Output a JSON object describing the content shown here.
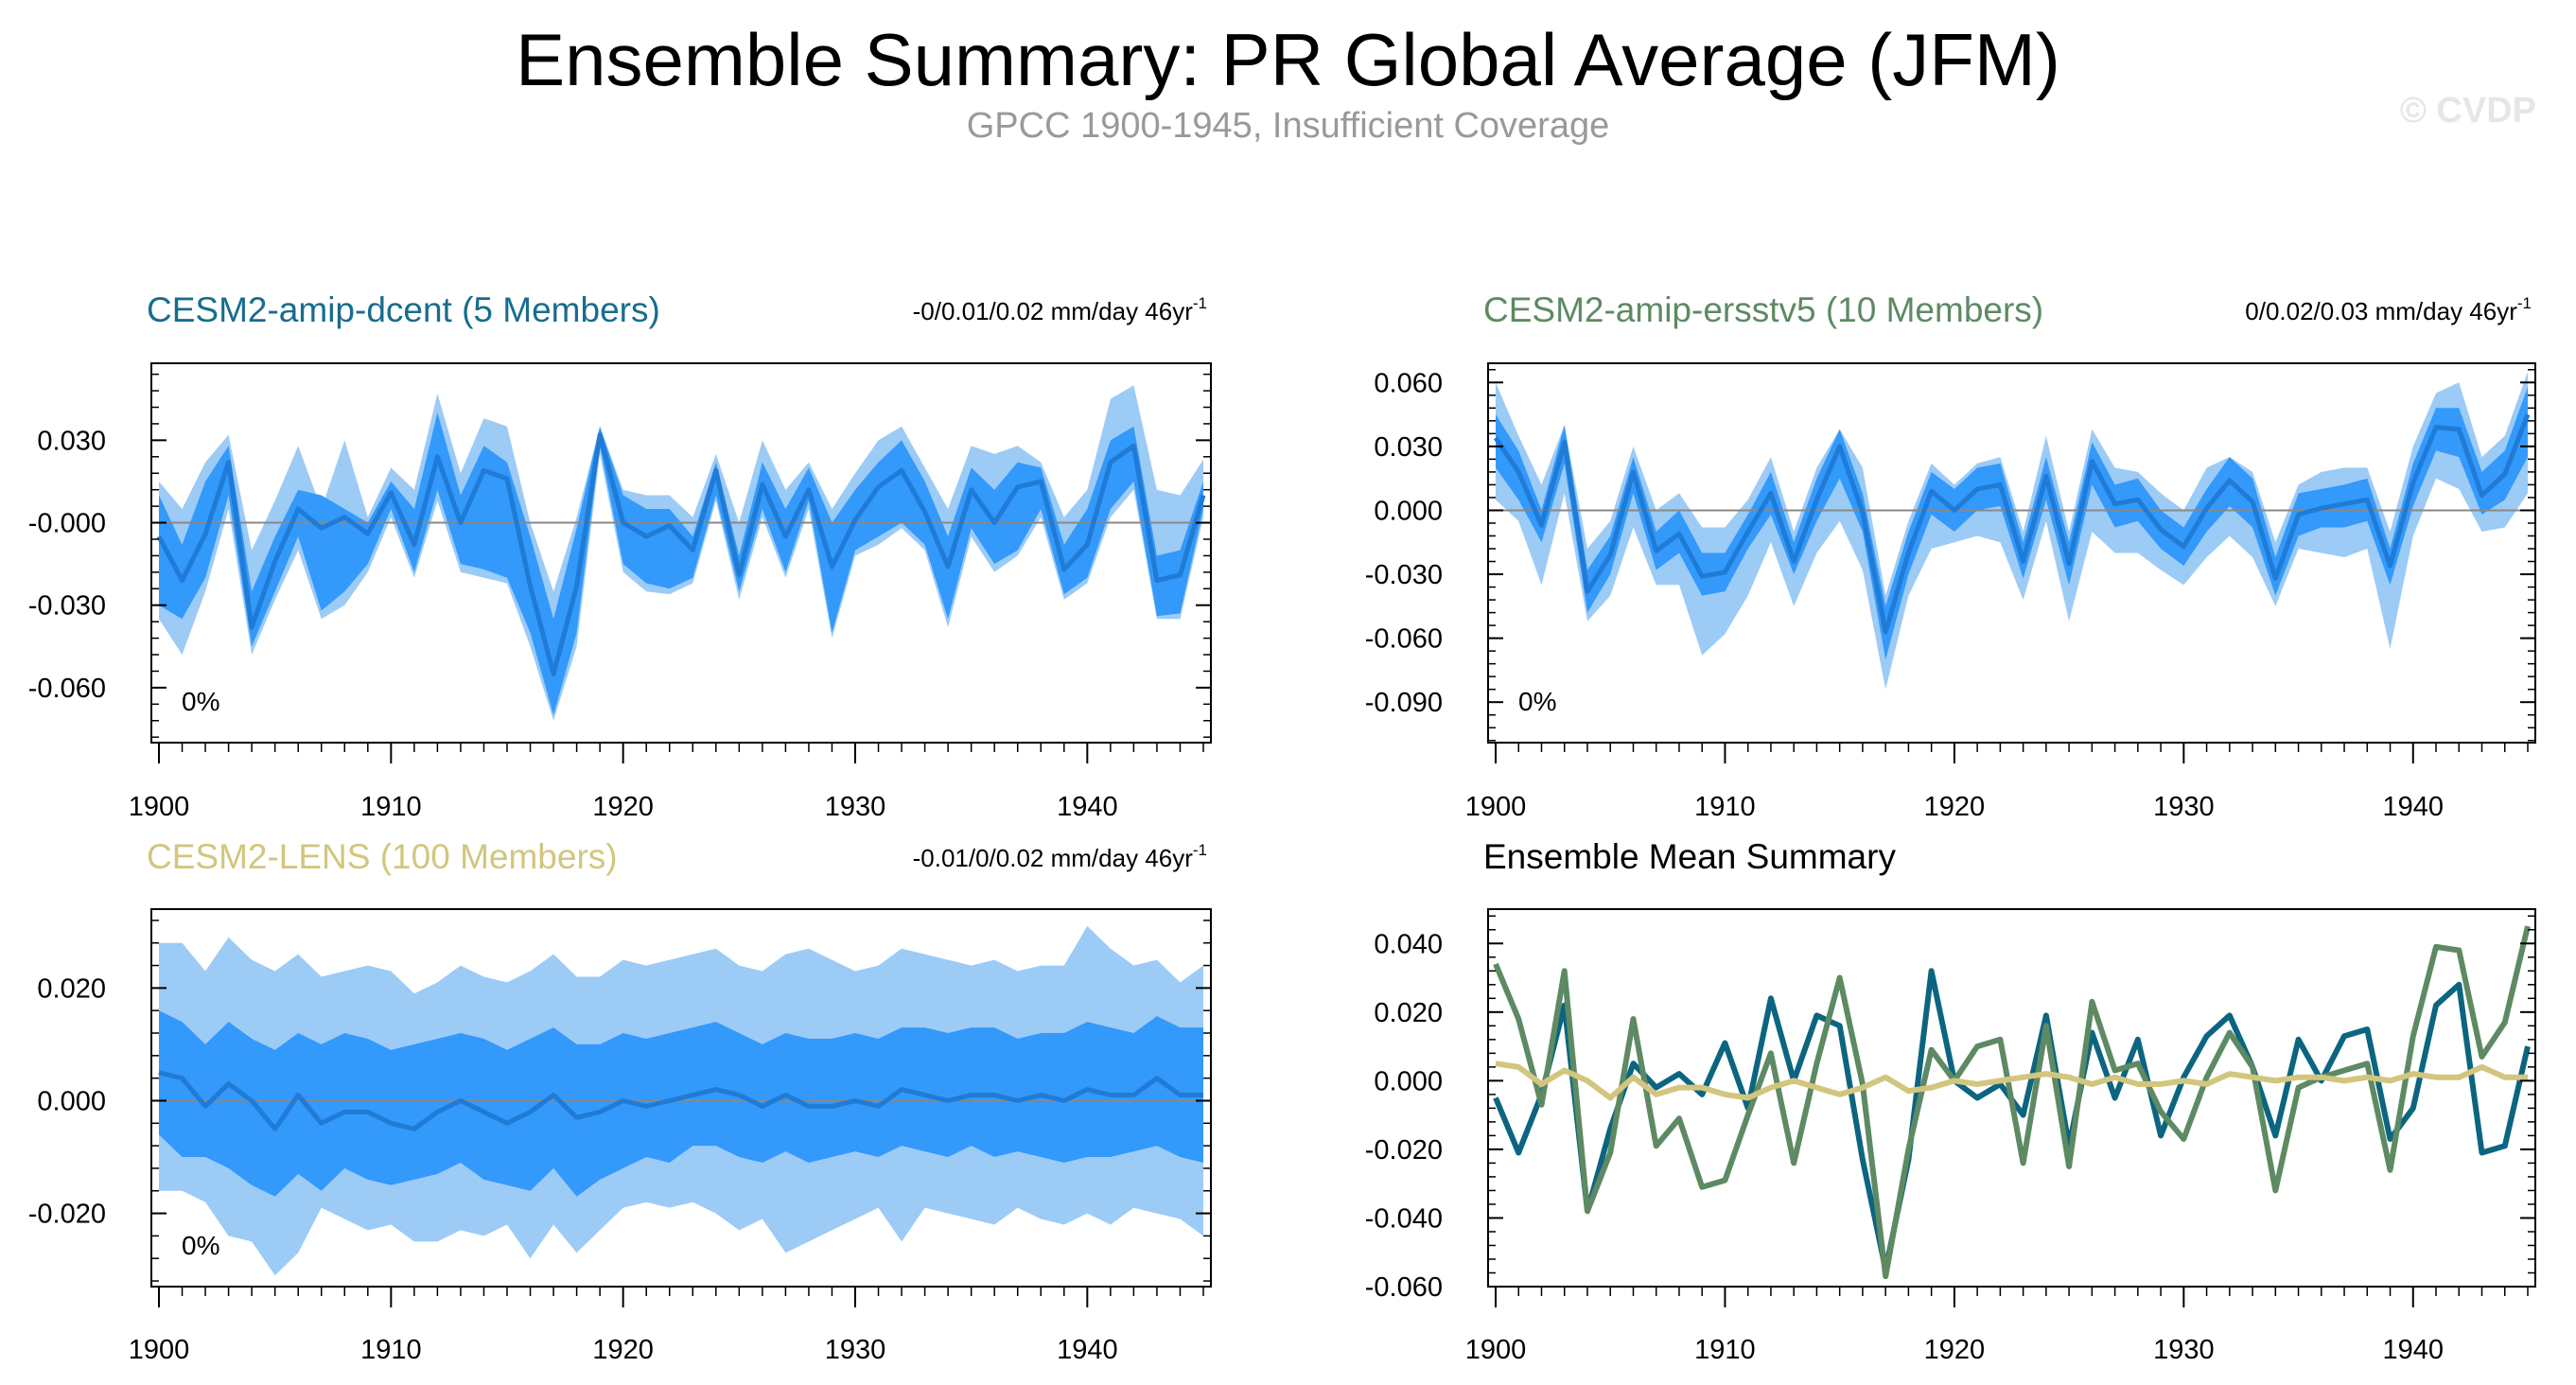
{
  "title": "Ensemble Summary: PR Global Average (JFM)",
  "subtitle": "GPCC 1900-1945, Insufficient Coverage",
  "watermark": "© CVDP",
  "colors": {
    "band_outer": "#9ccbf6",
    "band_inner": "#3399fb",
    "mean_line": "#1f7bd6",
    "dcent": "#0c6580",
    "ersstv5": "#5d8a63",
    "lens": "#d2c67f"
  },
  "chart_data": [
    {
      "id": "dcent",
      "type": "area",
      "title": "CESM2-amip-dcent (5 Members)",
      "title_color": "#176d8c",
      "trend_text": "-0/0.01/0.02 mm/day 46yr",
      "trend_sup": "-1",
      "percent_label": "0%",
      "x_start": 1900,
      "xticks": [
        1900,
        1910,
        1920,
        1930,
        1940
      ],
      "ylim": [
        -0.08,
        0.058
      ],
      "yticks": [
        0.03,
        0.0,
        -0.03,
        -0.06
      ],
      "ytick_labels": [
        "0.030",
        "-0.000",
        "-0.030",
        "-0.060"
      ],
      "series": {
        "mean": [
          -0.005,
          -0.021,
          -0.004,
          0.022,
          -0.038,
          -0.014,
          0.005,
          -0.002,
          0.002,
          -0.004,
          0.011,
          -0.008,
          0.024,
          0.0,
          0.019,
          0.016,
          -0.023,
          -0.055,
          -0.023,
          0.032,
          0.0,
          -0.005,
          -0.001,
          -0.01,
          0.019,
          -0.019,
          0.014,
          -0.005,
          0.012,
          -0.016,
          0.001,
          0.013,
          0.019,
          0.004,
          -0.016,
          0.012,
          0.0,
          0.013,
          0.015,
          -0.017,
          -0.008,
          0.022,
          0.028,
          -0.021,
          -0.019,
          0.01
        ],
        "inner_low": [
          -0.03,
          -0.035,
          -0.02,
          0.01,
          -0.045,
          -0.025,
          -0.005,
          -0.032,
          -0.025,
          -0.015,
          0.005,
          -0.018,
          0.012,
          -0.015,
          -0.017,
          -0.02,
          -0.04,
          -0.07,
          -0.04,
          0.028,
          -0.015,
          -0.022,
          -0.024,
          -0.02,
          0.01,
          -0.025,
          0.005,
          -0.018,
          0.008,
          -0.04,
          -0.01,
          -0.005,
          0.0,
          -0.008,
          -0.035,
          -0.002,
          -0.015,
          -0.01,
          0.005,
          -0.026,
          -0.02,
          0.005,
          0.015,
          -0.034,
          -0.033,
          0.005
        ],
        "inner_high": [
          0.01,
          -0.008,
          0.015,
          0.028,
          -0.025,
          -0.005,
          0.012,
          0.01,
          0.005,
          0.0,
          0.015,
          0.005,
          0.04,
          0.01,
          0.028,
          0.022,
          -0.005,
          -0.035,
          -0.002,
          0.035,
          0.01,
          0.005,
          0.005,
          -0.005,
          0.022,
          -0.012,
          0.022,
          0.005,
          0.02,
          0.0,
          0.012,
          0.022,
          0.03,
          0.015,
          -0.005,
          0.02,
          0.012,
          0.022,
          0.02,
          -0.008,
          0.005,
          0.03,
          0.035,
          -0.012,
          -0.01,
          0.015
        ],
        "outer_low": [
          -0.035,
          -0.048,
          -0.025,
          0.005,
          -0.048,
          -0.028,
          -0.01,
          -0.035,
          -0.03,
          -0.018,
          0.002,
          -0.02,
          0.008,
          -0.018,
          -0.02,
          -0.022,
          -0.045,
          -0.072,
          -0.045,
          0.025,
          -0.018,
          -0.025,
          -0.026,
          -0.022,
          0.008,
          -0.028,
          0.002,
          -0.02,
          0.005,
          -0.042,
          -0.012,
          -0.008,
          -0.002,
          -0.01,
          -0.038,
          -0.005,
          -0.018,
          -0.012,
          0.002,
          -0.028,
          -0.022,
          0.002,
          0.012,
          -0.035,
          -0.035,
          0.002
        ],
        "outer_high": [
          0.015,
          0.005,
          0.022,
          0.032,
          -0.01,
          0.008,
          0.028,
          0.005,
          0.03,
          0.002,
          0.02,
          0.012,
          0.047,
          0.018,
          0.038,
          0.035,
          0.0,
          -0.025,
          0.002,
          0.035,
          0.012,
          0.01,
          0.01,
          0.002,
          0.025,
          0.0,
          0.03,
          0.012,
          0.022,
          0.005,
          0.018,
          0.03,
          0.035,
          0.02,
          0.005,
          0.028,
          0.025,
          0.028,
          0.022,
          0.002,
          0.012,
          0.045,
          0.05,
          0.012,
          0.01,
          0.023
        ]
      }
    },
    {
      "id": "ersstv5",
      "type": "area",
      "title": "CESM2-amip-ersstv5 (10 Members)",
      "title_color": "#5d8a63",
      "trend_text": "0/0.02/0.03 mm/day 46yr",
      "trend_sup": "-1",
      "percent_label": "0%",
      "x_start": 1900,
      "xticks": [
        1900,
        1910,
        1920,
        1930,
        1940
      ],
      "ylim": [
        -0.109,
        0.069
      ],
      "yticks": [
        0.06,
        0.03,
        0.0,
        -0.03,
        -0.06,
        -0.09
      ],
      "ytick_labels": [
        "0.060",
        "0.030",
        "0.000",
        "-0.030",
        "-0.060",
        "-0.090"
      ],
      "series": {
        "mean": [
          0.034,
          0.018,
          -0.007,
          0.032,
          -0.038,
          -0.021,
          0.018,
          -0.019,
          -0.011,
          -0.031,
          -0.029,
          -0.01,
          0.008,
          -0.024,
          0.005,
          0.03,
          -0.001,
          -0.057,
          -0.02,
          0.009,
          0.0,
          0.01,
          0.012,
          -0.024,
          0.016,
          -0.025,
          0.023,
          0.003,
          0.005,
          -0.009,
          -0.017,
          0.001,
          0.014,
          0.004,
          -0.032,
          -0.002,
          0.001,
          0.003,
          0.005,
          -0.026,
          0.013,
          0.039,
          0.038,
          0.007,
          0.017,
          0.045
        ],
        "inner_low": [
          0.02,
          0.005,
          -0.015,
          0.022,
          -0.048,
          -0.03,
          0.008,
          -0.028,
          -0.02,
          -0.04,
          -0.038,
          -0.018,
          -0.002,
          -0.03,
          -0.005,
          0.015,
          -0.01,
          -0.07,
          -0.03,
          -0.002,
          -0.01,
          0.0,
          0.002,
          -0.032,
          0.005,
          -0.035,
          0.012,
          -0.008,
          -0.005,
          -0.018,
          -0.026,
          -0.01,
          0.002,
          -0.008,
          -0.04,
          -0.012,
          -0.008,
          -0.008,
          -0.005,
          -0.035,
          0.002,
          0.028,
          0.025,
          -0.002,
          0.005,
          0.025
        ],
        "inner_high": [
          0.045,
          0.028,
          0.0,
          0.04,
          -0.028,
          -0.012,
          0.025,
          -0.01,
          0.0,
          -0.02,
          -0.02,
          -0.002,
          0.018,
          -0.015,
          0.015,
          0.038,
          0.008,
          -0.045,
          -0.01,
          0.018,
          0.01,
          0.02,
          0.022,
          -0.015,
          0.025,
          -0.015,
          0.032,
          0.012,
          0.015,
          0.0,
          -0.008,
          0.01,
          0.025,
          0.015,
          -0.022,
          0.008,
          0.01,
          0.012,
          0.015,
          -0.018,
          0.022,
          0.048,
          0.048,
          0.018,
          0.028,
          0.058
        ],
        "outer_low": [
          0.005,
          -0.005,
          -0.035,
          0.008,
          -0.052,
          -0.04,
          -0.008,
          -0.035,
          -0.035,
          -0.068,
          -0.058,
          -0.04,
          -0.015,
          -0.045,
          -0.02,
          -0.005,
          -0.028,
          -0.084,
          -0.04,
          -0.018,
          -0.015,
          -0.012,
          -0.015,
          -0.042,
          -0.005,
          -0.052,
          -0.01,
          -0.02,
          -0.02,
          -0.028,
          -0.035,
          -0.022,
          -0.012,
          -0.022,
          -0.045,
          -0.018,
          -0.02,
          -0.022,
          -0.018,
          -0.065,
          -0.012,
          0.015,
          0.01,
          -0.01,
          -0.008,
          0.008
        ],
        "outer_high": [
          0.06,
          0.035,
          0.012,
          0.04,
          -0.018,
          -0.005,
          0.03,
          0.0,
          0.008,
          -0.008,
          -0.008,
          0.005,
          0.025,
          -0.01,
          0.02,
          0.038,
          0.02,
          -0.04,
          -0.005,
          0.022,
          0.012,
          0.022,
          0.025,
          -0.01,
          0.035,
          -0.01,
          0.038,
          0.02,
          0.018,
          0.008,
          0.0,
          0.02,
          0.025,
          0.018,
          -0.015,
          0.012,
          0.018,
          0.02,
          0.02,
          -0.01,
          0.03,
          0.055,
          0.06,
          0.025,
          0.035,
          0.065
        ]
      }
    },
    {
      "id": "lens",
      "type": "area",
      "title": "CESM2-LENS (100 Members)",
      "title_color": "#d2c67f",
      "trend_text": "-0.01/0/0.02 mm/day 46yr",
      "trend_sup": "-1",
      "percent_label": "0%",
      "x_start": 1900,
      "xticks": [
        1900,
        1910,
        1920,
        1930,
        1940
      ],
      "ylim": [
        -0.033,
        0.034
      ],
      "yticks": [
        0.02,
        0.0,
        -0.02
      ],
      "ytick_labels": [
        "0.020",
        "0.000",
        "-0.020"
      ],
      "series": {
        "mean": [
          0.005,
          0.004,
          -0.001,
          0.003,
          0.0,
          -0.005,
          0.001,
          -0.004,
          -0.002,
          -0.002,
          -0.004,
          -0.005,
          -0.002,
          0.0,
          -0.002,
          -0.004,
          -0.002,
          0.001,
          -0.003,
          -0.002,
          0.0,
          -0.001,
          0.0,
          0.001,
          0.002,
          0.001,
          -0.001,
          0.001,
          -0.001,
          -0.001,
          0.0,
          -0.001,
          0.002,
          0.001,
          0.0,
          0.001,
          0.001,
          0.0,
          0.001,
          0.0,
          0.002,
          0.001,
          0.001,
          0.004,
          0.001,
          0.001
        ],
        "inner_low": [
          -0.006,
          -0.01,
          -0.01,
          -0.012,
          -0.015,
          -0.017,
          -0.013,
          -0.016,
          -0.012,
          -0.014,
          -0.015,
          -0.014,
          -0.013,
          -0.011,
          -0.014,
          -0.015,
          -0.016,
          -0.012,
          -0.017,
          -0.014,
          -0.012,
          -0.01,
          -0.011,
          -0.008,
          -0.008,
          -0.01,
          -0.011,
          -0.009,
          -0.011,
          -0.01,
          -0.009,
          -0.01,
          -0.008,
          -0.009,
          -0.01,
          -0.008,
          -0.01,
          -0.009,
          -0.01,
          -0.011,
          -0.01,
          -0.01,
          -0.009,
          -0.008,
          -0.01,
          -0.011
        ],
        "inner_high": [
          0.016,
          0.014,
          0.01,
          0.014,
          0.011,
          0.009,
          0.012,
          0.01,
          0.012,
          0.011,
          0.009,
          0.01,
          0.011,
          0.012,
          0.011,
          0.009,
          0.011,
          0.013,
          0.01,
          0.01,
          0.012,
          0.011,
          0.012,
          0.013,
          0.014,
          0.012,
          0.01,
          0.012,
          0.011,
          0.011,
          0.012,
          0.011,
          0.013,
          0.013,
          0.012,
          0.013,
          0.013,
          0.011,
          0.012,
          0.012,
          0.014,
          0.013,
          0.012,
          0.015,
          0.013,
          0.013
        ],
        "outer_low": [
          -0.016,
          -0.016,
          -0.018,
          -0.024,
          -0.025,
          -0.031,
          -0.027,
          -0.019,
          -0.021,
          -0.023,
          -0.022,
          -0.025,
          -0.025,
          -0.023,
          -0.024,
          -0.022,
          -0.028,
          -0.022,
          -0.027,
          -0.023,
          -0.019,
          -0.018,
          -0.019,
          -0.018,
          -0.02,
          -0.023,
          -0.021,
          -0.027,
          -0.025,
          -0.023,
          -0.021,
          -0.019,
          -0.025,
          -0.019,
          -0.02,
          -0.021,
          -0.022,
          -0.019,
          -0.021,
          -0.022,
          -0.02,
          -0.022,
          -0.019,
          -0.02,
          -0.021,
          -0.024
        ],
        "outer_high": [
          0.028,
          0.028,
          0.023,
          0.029,
          0.025,
          0.023,
          0.026,
          0.022,
          0.023,
          0.024,
          0.023,
          0.019,
          0.021,
          0.024,
          0.022,
          0.021,
          0.023,
          0.026,
          0.022,
          0.022,
          0.025,
          0.024,
          0.025,
          0.026,
          0.027,
          0.024,
          0.023,
          0.026,
          0.027,
          0.025,
          0.023,
          0.024,
          0.027,
          0.026,
          0.025,
          0.024,
          0.025,
          0.023,
          0.024,
          0.024,
          0.031,
          0.027,
          0.024,
          0.025,
          0.021,
          0.024
        ]
      }
    },
    {
      "id": "summary",
      "type": "line",
      "title": "Ensemble Mean Summary",
      "title_color": "#000000",
      "x_start": 1900,
      "xticks": [
        1900,
        1910,
        1920,
        1930,
        1940
      ],
      "ylim": [
        -0.06,
        0.05
      ],
      "yticks": [
        0.04,
        0.02,
        0.0,
        -0.02,
        -0.04,
        -0.06
      ],
      "ytick_labels": [
        "0.040",
        "0.020",
        "0.000",
        "-0.020",
        "-0.040",
        "-0.060"
      ],
      "series": [
        {
          "name": "CESM2-amip-dcent",
          "color": "#0c6580",
          "values": [
            -0.005,
            -0.021,
            -0.004,
            0.022,
            -0.038,
            -0.014,
            0.005,
            -0.002,
            0.002,
            -0.004,
            0.011,
            -0.008,
            0.024,
            0.0,
            0.019,
            0.016,
            -0.023,
            -0.055,
            -0.023,
            0.032,
            0.0,
            -0.005,
            -0.001,
            -0.01,
            0.019,
            -0.019,
            0.014,
            -0.005,
            0.012,
            -0.016,
            0.001,
            0.013,
            0.019,
            0.004,
            -0.016,
            0.012,
            0.0,
            0.013,
            0.015,
            -0.017,
            -0.008,
            0.022,
            0.028,
            -0.021,
            -0.019,
            0.01
          ]
        },
        {
          "name": "CESM2-amip-ersstv5",
          "color": "#5d8a63",
          "values": [
            0.034,
            0.018,
            -0.007,
            0.032,
            -0.038,
            -0.021,
            0.018,
            -0.019,
            -0.011,
            -0.031,
            -0.029,
            -0.01,
            0.008,
            -0.024,
            0.005,
            0.03,
            -0.001,
            -0.057,
            -0.02,
            0.009,
            0.0,
            0.01,
            0.012,
            -0.024,
            0.016,
            -0.025,
            0.023,
            0.003,
            0.005,
            -0.009,
            -0.017,
            0.001,
            0.014,
            0.004,
            -0.032,
            -0.002,
            0.001,
            0.003,
            0.005,
            -0.026,
            0.013,
            0.039,
            0.038,
            0.007,
            0.017,
            0.045
          ]
        },
        {
          "name": "CESM2-LENS",
          "color": "#d2c67f",
          "values": [
            0.005,
            0.004,
            -0.001,
            0.003,
            0.0,
            -0.005,
            0.001,
            -0.004,
            -0.002,
            -0.002,
            -0.004,
            -0.005,
            -0.002,
            0.0,
            -0.002,
            -0.004,
            -0.002,
            0.001,
            -0.003,
            -0.002,
            0.0,
            -0.001,
            0.0,
            0.001,
            0.002,
            0.001,
            -0.001,
            0.001,
            -0.001,
            -0.001,
            0.0,
            -0.001,
            0.002,
            0.001,
            0.0,
            0.001,
            0.001,
            0.0,
            0.001,
            0.0,
            0.002,
            0.001,
            0.001,
            0.004,
            0.001,
            0.001
          ]
        }
      ]
    }
  ]
}
